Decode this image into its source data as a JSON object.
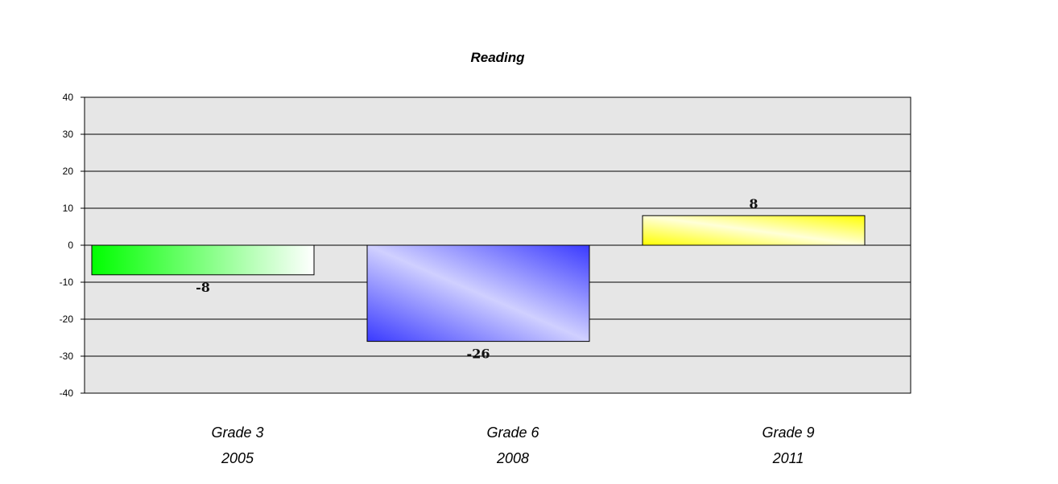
{
  "chart_data": {
    "type": "bar",
    "title": "Reading",
    "categories": [
      {
        "line1": "Grade 3",
        "line2": "2005"
      },
      {
        "line1": "Grade 6",
        "line2": "2008"
      },
      {
        "line1": "Grade 9",
        "line2": "2011"
      }
    ],
    "values": [
      -8,
      -26,
      8
    ],
    "data_labels": [
      "-8",
      "-26",
      "8"
    ],
    "ylim": [
      -40,
      40
    ],
    "yticks": [
      40,
      30,
      20,
      10,
      0,
      -10,
      -20,
      -30,
      -40
    ],
    "ytick_labels": [
      "40",
      "30",
      "20",
      "10",
      "0",
      "-10",
      "-20",
      "-30",
      "-40"
    ],
    "grid": true,
    "plot_background": "#e6e6e6",
    "bar_colors": [
      "#00ff00",
      "#3a3aff",
      "#ffff00"
    ],
    "legend": "none"
  }
}
